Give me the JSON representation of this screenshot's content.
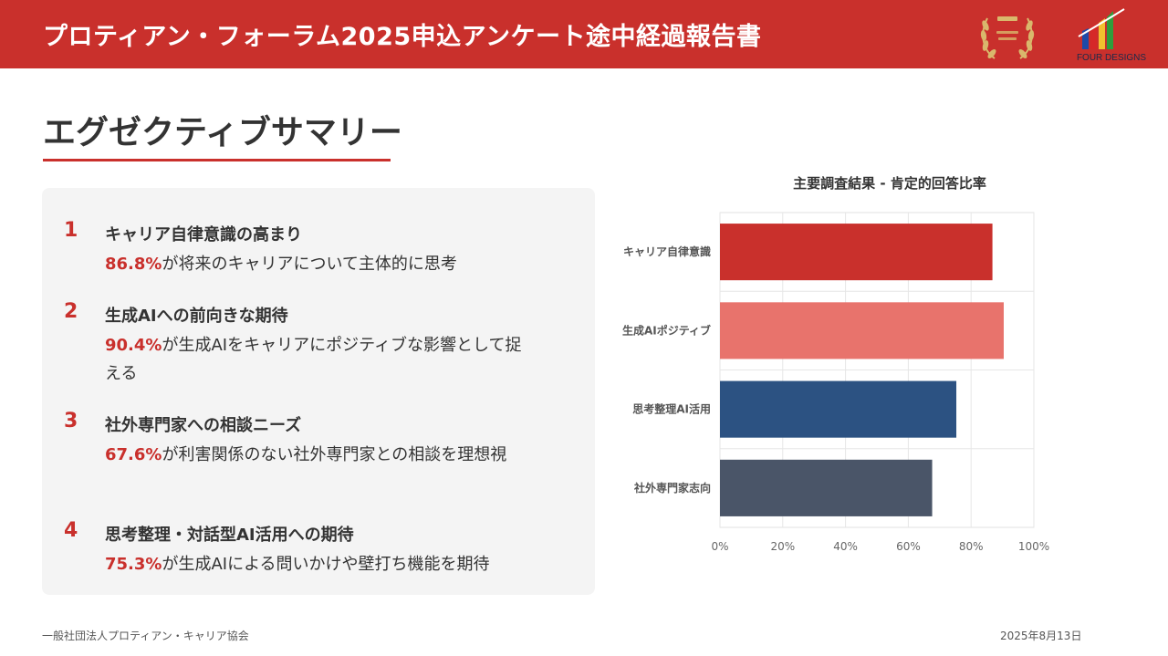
{
  "header": {
    "title": "プロティアン・フォーラム2025申込アンケート途中経過報告書",
    "brand_name": "FOUR DESIGNS"
  },
  "section": {
    "title": "エグゼクティブサマリー"
  },
  "summary": {
    "items": [
      {
        "num": "1",
        "title": "キャリア自律意識の高まり",
        "pct": "86.8%",
        "text": "が将来のキャリアについて主体的に思考"
      },
      {
        "num": "2",
        "title": "生成AIへの前向きな期待",
        "pct": "90.4%",
        "text": "が生成AIをキャリアにポジティブな影響として捉える"
      },
      {
        "num": "3",
        "title": "社外専門家への相談ニーズ",
        "pct": "67.6%",
        "text": "が利害関係のない社外専門家との相談を理想視"
      },
      {
        "num": "4",
        "title": "思考整理・対話型AI活用への期待",
        "pct": "75.3%",
        "text": "が生成AIによる問いかけや壁打ち機能を期待"
      }
    ]
  },
  "chart_data": {
    "type": "bar",
    "orientation": "horizontal",
    "title": "主要調査結果 - 肯定的回答比率",
    "categories": [
      "キャリア自律意識",
      "生成AIポジティブ",
      "思考整理AI活用",
      "社外専門家志向"
    ],
    "values": [
      86.8,
      90.4,
      75.3,
      67.6
    ],
    "colors": [
      "#c9302c",
      "#e8736c",
      "#2c5282",
      "#4a5568"
    ],
    "xlim": [
      0,
      100
    ],
    "ticks": [
      "0%",
      "20%",
      "40%",
      "60%",
      "80%",
      "100%"
    ],
    "grid": true
  },
  "footer": {
    "org": "一般社団法人プロティアン・キャリア協会",
    "date": "2025年8月13日"
  }
}
